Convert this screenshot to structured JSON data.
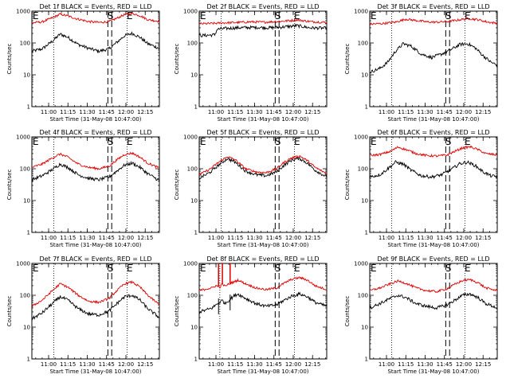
{
  "colors": {
    "events": "#000000",
    "lld": "#dd0000",
    "axes": "#000000"
  },
  "shared": {
    "xlabel": "Start Time (31-May-08 10:47:00)",
    "ylabel": "Counts/sec",
    "xticks": [
      {
        "label": "11:00",
        "min": 13
      },
      {
        "label": "11:15",
        "min": 28
      },
      {
        "label": "11:30",
        "min": 43
      },
      {
        "label": "11:45",
        "min": 58
      },
      {
        "label": "12:00",
        "min": 73
      },
      {
        "label": "12:15",
        "min": 88
      }
    ],
    "yticks": [
      {
        "label": "1",
        "v": 1
      },
      {
        "label": "10",
        "v": 10
      },
      {
        "label": "100",
        "v": 100
      },
      {
        "label": "1000",
        "v": 1000
      }
    ],
    "markers": {
      "E1": {
        "label": "E",
        "min": 0
      },
      "S": {
        "label": "S",
        "min": 61
      },
      "E2": {
        "label": "E",
        "min": 76
      }
    }
  },
  "chart_data": [
    {
      "type": "line",
      "title": "Det 1f BLACK = Events, RED = LLD",
      "xlabel": "Start Time (31-May-08 10:47:00)",
      "ylabel": "Counts/sec",
      "xlim": [
        0,
        99
      ],
      "ylim": [
        1,
        1000
      ],
      "yscale": "log",
      "dotted_x": [
        17,
        74
      ],
      "dashed_x": [
        59,
        62
      ],
      "series": [
        {
          "key": "events",
          "x": [
            0,
            8,
            16,
            22,
            28,
            36,
            44,
            52,
            60,
            66,
            72,
            78,
            84,
            90,
            99
          ],
          "values": [
            55,
            65,
            115,
            190,
            150,
            90,
            68,
            55,
            65,
            105,
            170,
            200,
            150,
            95,
            68
          ]
        },
        {
          "key": "lld",
          "x": [
            0,
            8,
            16,
            22,
            28,
            36,
            44,
            52,
            60,
            66,
            72,
            78,
            84,
            90,
            99
          ],
          "values": [
            430,
            460,
            620,
            800,
            700,
            560,
            470,
            440,
            470,
            600,
            780,
            850,
            720,
            540,
            480
          ]
        }
      ]
    },
    {
      "type": "line",
      "title": "Det 2f BLACK = Events, RED = LLD",
      "xlabel": "Start Time (31-May-08 10:47:00)",
      "ylabel": "Counts/sec",
      "xlim": [
        0,
        99
      ],
      "ylim": [
        1,
        1000
      ],
      "yscale": "log",
      "dotted_x": [
        17,
        74
      ],
      "dashed_x": [
        59,
        62
      ],
      "series": [
        {
          "key": "events",
          "x": [
            0,
            6,
            12,
            14,
            18,
            30,
            44,
            56,
            66,
            76,
            86,
            99
          ],
          "values": [
            170,
            175,
            180,
            270,
            280,
            300,
            310,
            300,
            320,
            350,
            300,
            290
          ]
        },
        {
          "key": "lld",
          "x": [
            0,
            10,
            20,
            30,
            40,
            50,
            60,
            70,
            76,
            86,
            99
          ],
          "values": [
            400,
            410,
            430,
            440,
            460,
            450,
            470,
            500,
            530,
            470,
            440
          ]
        }
      ]
    },
    {
      "type": "line",
      "title": "Det 3f BLACK = Events, RED = LLD",
      "xlabel": "Start Time (31-May-08 10:47:00)",
      "ylabel": "Counts/sec",
      "xlim": [
        0,
        99
      ],
      "ylim": [
        1,
        1000
      ],
      "yscale": "log",
      "dotted_x": [
        17,
        74
      ],
      "dashed_x": [
        59,
        62
      ],
      "series": [
        {
          "key": "events",
          "x": [
            0,
            8,
            14,
            20,
            26,
            32,
            40,
            48,
            56,
            64,
            70,
            76,
            82,
            88,
            94,
            99
          ],
          "values": [
            12,
            16,
            25,
            55,
            95,
            80,
            45,
            35,
            45,
            65,
            90,
            95,
            70,
            40,
            25,
            20
          ]
        },
        {
          "key": "lld",
          "x": [
            0,
            10,
            20,
            28,
            36,
            44,
            52,
            60,
            68,
            76,
            84,
            92,
            99
          ],
          "values": [
            390,
            410,
            450,
            560,
            510,
            460,
            450,
            470,
            520,
            590,
            540,
            450,
            420
          ]
        }
      ]
    },
    {
      "type": "line",
      "title": "Det 4f BLACK = Events, RED = LLD",
      "xlabel": "Start Time (31-May-08 10:47:00)",
      "ylabel": "Counts/sec",
      "xlim": [
        0,
        99
      ],
      "ylim": [
        1,
        1000
      ],
      "yscale": "log",
      "dotted_x": [
        17,
        74
      ],
      "dashed_x": [
        59,
        62
      ],
      "series": [
        {
          "key": "events",
          "x": [
            0,
            8,
            16,
            22,
            28,
            36,
            44,
            52,
            60,
            66,
            72,
            78,
            84,
            90,
            99
          ],
          "values": [
            45,
            60,
            95,
            140,
            110,
            65,
            50,
            45,
            55,
            85,
            130,
            150,
            110,
            70,
            42
          ]
        },
        {
          "key": "lld",
          "x": [
            0,
            8,
            16,
            22,
            28,
            36,
            44,
            52,
            60,
            66,
            72,
            78,
            84,
            90,
            99
          ],
          "values": [
            110,
            140,
            220,
            290,
            230,
            140,
            110,
            100,
            120,
            190,
            280,
            310,
            230,
            150,
            105
          ]
        }
      ]
    },
    {
      "type": "line",
      "title": "Det 5f BLACK = Events, RED = LLD",
      "xlabel": "Start Time (31-May-08 10:47:00)",
      "ylabel": "Counts/sec",
      "xlim": [
        0,
        99
      ],
      "ylim": [
        1,
        1000
      ],
      "yscale": "log",
      "dotted_x": [
        17,
        74
      ],
      "dashed_x": [
        59,
        62
      ],
      "series": [
        {
          "key": "events",
          "x": [
            0,
            8,
            16,
            22,
            28,
            36,
            44,
            52,
            60,
            66,
            72,
            78,
            84,
            90,
            99
          ],
          "values": [
            50,
            75,
            140,
            210,
            160,
            85,
            65,
            60,
            80,
            130,
            190,
            210,
            150,
            90,
            55
          ]
        },
        {
          "key": "lld",
          "x": [
            0,
            8,
            16,
            22,
            28,
            36,
            44,
            52,
            60,
            66,
            72,
            78,
            84,
            90,
            99
          ],
          "values": [
            65,
            95,
            170,
            240,
            190,
            100,
            80,
            75,
            100,
            160,
            220,
            250,
            180,
            110,
            70
          ]
        }
      ]
    },
    {
      "type": "line",
      "title": "Det 6f BLACK = Events, RED = LLD",
      "xlabel": "Start Time (31-May-08 10:47:00)",
      "ylabel": "Counts/sec",
      "xlim": [
        0,
        99
      ],
      "ylim": [
        1,
        1000
      ],
      "yscale": "log",
      "dotted_x": [
        17,
        74
      ],
      "dashed_x": [
        59,
        62
      ],
      "series": [
        {
          "key": "events",
          "x": [
            0,
            8,
            14,
            20,
            26,
            32,
            40,
            48,
            56,
            64,
            70,
            76,
            82,
            88,
            94,
            99
          ],
          "values": [
            55,
            65,
            100,
            160,
            140,
            90,
            60,
            55,
            65,
            100,
            145,
            160,
            125,
            80,
            60,
            55
          ]
        },
        {
          "key": "lld",
          "x": [
            0,
            8,
            16,
            22,
            28,
            36,
            44,
            52,
            60,
            66,
            72,
            78,
            84,
            90,
            99
          ],
          "values": [
            260,
            280,
            350,
            480,
            400,
            300,
            260,
            250,
            270,
            350,
            450,
            490,
            400,
            300,
            270
          ]
        }
      ]
    },
    {
      "type": "line",
      "title": "Det 7f BLACK = Events, RED = LLD",
      "xlabel": "Start Time (31-May-08 10:47:00)",
      "ylabel": "Counts/sec",
      "xlim": [
        0,
        99
      ],
      "ylim": [
        1,
        1000
      ],
      "yscale": "log",
      "dotted_x": [
        17,
        74
      ],
      "dashed_x": [
        59,
        62
      ],
      "series": [
        {
          "key": "events",
          "x": [
            0,
            8,
            16,
            22,
            28,
            36,
            44,
            52,
            60,
            66,
            72,
            78,
            84,
            90,
            99
          ],
          "values": [
            18,
            28,
            55,
            90,
            70,
            38,
            26,
            24,
            32,
            55,
            90,
            100,
            70,
            38,
            20
          ]
        },
        {
          "key": "lld",
          "x": [
            0,
            8,
            16,
            22,
            28,
            36,
            44,
            52,
            60,
            66,
            72,
            78,
            84,
            90,
            99
          ],
          "values": [
            45,
            70,
            140,
            230,
            180,
            100,
            65,
            60,
            80,
            140,
            230,
            260,
            180,
            100,
            50
          ]
        }
      ]
    },
    {
      "type": "line",
      "title": "Det 8f BLACK = Events, RED = LLD",
      "xlabel": "Start Time (31-May-08 10:47:00)",
      "ylabel": "Counts/sec",
      "xlim": [
        0,
        99
      ],
      "ylim": [
        1,
        1000
      ],
      "yscale": "log",
      "dotted_x": [
        16,
        74
      ],
      "dashed_x": [
        59,
        62
      ],
      "series": [
        {
          "key": "events",
          "x": [
            0,
            6,
            10,
            13,
            16,
            18,
            20,
            24,
            27,
            30,
            36,
            44,
            52,
            60,
            66,
            72,
            78,
            84,
            90,
            99
          ],
          "values": [
            30,
            35,
            40,
            50,
            60,
            70,
            55,
            75,
            95,
            110,
            80,
            55,
            45,
            50,
            70,
            95,
            110,
            90,
            60,
            45
          ]
        },
        {
          "key": "lld",
          "x": [
            0,
            6,
            10,
            13,
            16,
            18,
            20,
            24,
            27,
            30,
            36,
            44,
            52,
            60,
            66,
            72,
            78,
            84,
            90,
            99
          ],
          "values": [
            140,
            160,
            170,
            200,
            180,
            230,
            190,
            240,
            260,
            300,
            230,
            170,
            150,
            170,
            240,
            320,
            360,
            300,
            200,
            150
          ]
        }
      ],
      "spikes": [
        {
          "x": 15,
          "v": 1000
        },
        {
          "x": 18,
          "v": 1000
        },
        {
          "x": 24,
          "v": 1000
        }
      ]
    },
    {
      "type": "line",
      "title": "Det 9f BLACK = Events, RED = LLD",
      "xlabel": "Start Time (31-May-08 10:47:00)",
      "ylabel": "Counts/sec",
      "xlim": [
        0,
        99
      ],
      "ylim": [
        1,
        1000
      ],
      "yscale": "log",
      "dotted_x": [
        17,
        74
      ],
      "dashed_x": [
        59,
        62
      ],
      "series": [
        {
          "key": "events",
          "x": [
            0,
            8,
            16,
            22,
            28,
            36,
            44,
            52,
            60,
            66,
            72,
            78,
            84,
            90,
            99
          ],
          "values": [
            40,
            55,
            80,
            100,
            85,
            55,
            45,
            40,
            50,
            70,
            100,
            110,
            85,
            55,
            40
          ]
        },
        {
          "key": "lld",
          "x": [
            0,
            8,
            16,
            22,
            28,
            36,
            44,
            52,
            60,
            66,
            72,
            78,
            84,
            90,
            99
          ],
          "values": [
            140,
            170,
            230,
            280,
            240,
            170,
            140,
            130,
            160,
            220,
            290,
            310,
            250,
            170,
            140
          ]
        }
      ]
    }
  ]
}
